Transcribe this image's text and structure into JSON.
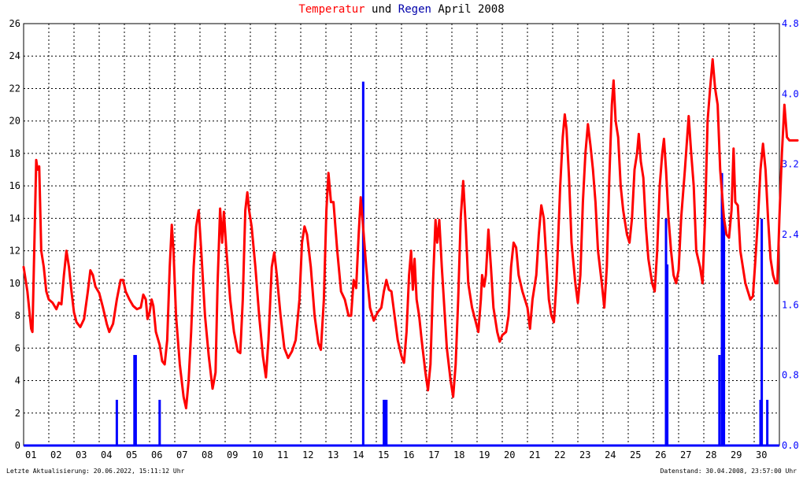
{
  "title": {
    "part1": "Temperatur",
    "part2": " und ",
    "part3": "Regen",
    "part4": " April 2008"
  },
  "footer": {
    "left": "Letzte Aktualisierung: 20.06.2022, 15:11:12 Uhr",
    "right": "Datenstand: 30.04.2008, 23:57:00 Uhr"
  },
  "colors": {
    "temperature": "#ff0000",
    "rain": "#0000ff",
    "grid": "#000000",
    "left_axis": "#000000",
    "right_axis": "#0000ff"
  },
  "chart_data": {
    "type": "line",
    "title": "Temperatur und Regen April 2008",
    "x_ticks": [
      "01",
      "02",
      "03",
      "04",
      "05",
      "06",
      "07",
      "08",
      "09",
      "10",
      "11",
      "12",
      "13",
      "14",
      "15",
      "16",
      "17",
      "18",
      "19",
      "20",
      "21",
      "22",
      "23",
      "24",
      "25",
      "26",
      "27",
      "28",
      "29",
      "30"
    ],
    "xlim": [
      0,
      30
    ],
    "y_left": {
      "ylim": [
        0,
        26
      ],
      "ticks": [
        "0",
        "2",
        "4",
        "6",
        "8",
        "10",
        "12",
        "14",
        "16",
        "18",
        "20",
        "22",
        "24",
        "26"
      ]
    },
    "y_right": {
      "ylim": [
        0,
        4.8
      ],
      "ticks": [
        "0.0",
        "0.8",
        "1.6",
        "2.4",
        "3.2",
        "4.0",
        "4.8"
      ]
    },
    "grid": true,
    "series": [
      {
        "name": "Temperatur",
        "axis": "left",
        "points": [
          [
            0.0,
            11.0
          ],
          [
            0.15,
            9.5
          ],
          [
            0.3,
            7.2
          ],
          [
            0.35,
            7.0
          ],
          [
            0.45,
            14.0
          ],
          [
            0.5,
            17.6
          ],
          [
            0.55,
            17.0
          ],
          [
            0.62,
            17.2
          ],
          [
            0.7,
            12.0
          ],
          [
            0.8,
            11.0
          ],
          [
            0.9,
            9.5
          ],
          [
            1.0,
            9.0
          ],
          [
            1.15,
            8.8
          ],
          [
            1.3,
            8.4
          ],
          [
            1.4,
            8.8
          ],
          [
            1.5,
            8.7
          ],
          [
            1.6,
            10.5
          ],
          [
            1.7,
            12.0
          ],
          [
            1.8,
            11.0
          ],
          [
            1.9,
            9.5
          ],
          [
            2.0,
            8.2
          ],
          [
            2.1,
            7.6
          ],
          [
            2.25,
            7.3
          ],
          [
            2.4,
            7.8
          ],
          [
            2.55,
            9.5
          ],
          [
            2.65,
            10.8
          ],
          [
            2.75,
            10.5
          ],
          [
            2.85,
            9.8
          ],
          [
            3.0,
            9.4
          ],
          [
            3.15,
            8.5
          ],
          [
            3.3,
            7.5
          ],
          [
            3.4,
            7.0
          ],
          [
            3.55,
            7.5
          ],
          [
            3.7,
            9.0
          ],
          [
            3.85,
            10.2
          ],
          [
            3.95,
            10.2
          ],
          [
            4.05,
            9.5
          ],
          [
            4.2,
            9.0
          ],
          [
            4.35,
            8.6
          ],
          [
            4.5,
            8.4
          ],
          [
            4.65,
            8.5
          ],
          [
            4.75,
            9.3
          ],
          [
            4.85,
            9.0
          ],
          [
            4.92,
            7.8
          ],
          [
            5.0,
            8.2
          ],
          [
            5.08,
            9.0
          ],
          [
            5.15,
            8.6
          ],
          [
            5.25,
            7.0
          ],
          [
            5.4,
            6.2
          ],
          [
            5.5,
            5.2
          ],
          [
            5.6,
            5.0
          ],
          [
            5.7,
            6.5
          ],
          [
            5.8,
            11.0
          ],
          [
            5.88,
            13.6
          ],
          [
            5.95,
            12.0
          ],
          [
            6.05,
            8.0
          ],
          [
            6.2,
            5.0
          ],
          [
            6.35,
            3.0
          ],
          [
            6.45,
            2.3
          ],
          [
            6.55,
            4.0
          ],
          [
            6.65,
            7.0
          ],
          [
            6.75,
            11.0
          ],
          [
            6.85,
            13.5
          ],
          [
            6.95,
            14.5
          ],
          [
            7.05,
            12.0
          ],
          [
            7.2,
            8.0
          ],
          [
            7.35,
            5.5
          ],
          [
            7.5,
            3.5
          ],
          [
            7.62,
            4.5
          ],
          [
            7.7,
            10.0
          ],
          [
            7.8,
            14.6
          ],
          [
            7.88,
            12.5
          ],
          [
            7.95,
            14.4
          ],
          [
            8.05,
            12.0
          ],
          [
            8.2,
            9.0
          ],
          [
            8.35,
            7.0
          ],
          [
            8.5,
            5.8
          ],
          [
            8.6,
            5.7
          ],
          [
            8.7,
            9.0
          ],
          [
            8.8,
            14.5
          ],
          [
            8.88,
            15.6
          ],
          [
            8.95,
            14.5
          ],
          [
            9.05,
            13.5
          ],
          [
            9.2,
            11.0
          ],
          [
            9.35,
            8.0
          ],
          [
            9.5,
            5.5
          ],
          [
            9.62,
            4.2
          ],
          [
            9.72,
            6.5
          ],
          [
            9.85,
            11.0
          ],
          [
            9.95,
            11.9
          ],
          [
            10.05,
            10.5
          ],
          [
            10.2,
            8.0
          ],
          [
            10.35,
            6.0
          ],
          [
            10.5,
            5.4
          ],
          [
            10.65,
            5.8
          ],
          [
            10.8,
            6.5
          ],
          [
            10.95,
            9.0
          ],
          [
            11.05,
            12.5
          ],
          [
            11.15,
            13.5
          ],
          [
            11.25,
            13.0
          ],
          [
            11.4,
            11.0
          ],
          [
            11.55,
            8.0
          ],
          [
            11.7,
            6.3
          ],
          [
            11.8,
            5.9
          ],
          [
            11.92,
            9.0
          ],
          [
            12.02,
            14.5
          ],
          [
            12.1,
            16.8
          ],
          [
            12.2,
            15.0
          ],
          [
            12.3,
            15.0
          ],
          [
            12.45,
            12.0
          ],
          [
            12.6,
            9.5
          ],
          [
            12.75,
            9.0
          ],
          [
            12.9,
            8.0
          ],
          [
            13.0,
            8.0
          ],
          [
            13.1,
            10.2
          ],
          [
            13.2,
            9.7
          ],
          [
            13.3,
            13.0
          ],
          [
            13.38,
            15.3
          ],
          [
            13.45,
            14.0
          ],
          [
            13.6,
            11.0
          ],
          [
            13.75,
            8.5
          ],
          [
            13.9,
            7.7
          ],
          [
            14.05,
            8.2
          ],
          [
            14.2,
            8.5
          ],
          [
            14.3,
            9.5
          ],
          [
            14.4,
            10.2
          ],
          [
            14.5,
            9.6
          ],
          [
            14.6,
            9.5
          ],
          [
            14.7,
            8.3
          ],
          [
            14.85,
            6.5
          ],
          [
            15.0,
            5.5
          ],
          [
            15.1,
            5.1
          ],
          [
            15.2,
            7.0
          ],
          [
            15.3,
            10.5
          ],
          [
            15.38,
            12.0
          ],
          [
            15.45,
            9.6
          ],
          [
            15.52,
            11.5
          ],
          [
            15.6,
            9.0
          ],
          [
            15.7,
            8.0
          ],
          [
            15.8,
            6.5
          ],
          [
            15.95,
            4.5
          ],
          [
            16.05,
            3.4
          ],
          [
            16.15,
            5.0
          ],
          [
            16.25,
            10.0
          ],
          [
            16.35,
            13.9
          ],
          [
            16.42,
            12.5
          ],
          [
            16.5,
            13.9
          ],
          [
            16.6,
            11.0
          ],
          [
            16.7,
            8.5
          ],
          [
            16.8,
            6.0
          ],
          [
            16.95,
            4.0
          ],
          [
            17.05,
            3.0
          ],
          [
            17.15,
            5.0
          ],
          [
            17.25,
            9.0
          ],
          [
            17.35,
            14.0
          ],
          [
            17.45,
            16.3
          ],
          [
            17.55,
            13.5
          ],
          [
            17.65,
            10.0
          ],
          [
            17.8,
            8.5
          ],
          [
            17.95,
            7.6
          ],
          [
            18.05,
            7.0
          ],
          [
            18.15,
            9.0
          ],
          [
            18.2,
            10.5
          ],
          [
            18.28,
            9.8
          ],
          [
            18.35,
            10.5
          ],
          [
            18.45,
            13.3
          ],
          [
            18.55,
            11.0
          ],
          [
            18.65,
            8.5
          ],
          [
            18.8,
            7.0
          ],
          [
            18.9,
            6.4
          ],
          [
            19.0,
            6.8
          ],
          [
            19.15,
            7.0
          ],
          [
            19.25,
            8.0
          ],
          [
            19.35,
            11.0
          ],
          [
            19.45,
            12.5
          ],
          [
            19.55,
            12.2
          ],
          [
            19.65,
            10.5
          ],
          [
            19.8,
            9.5
          ],
          [
            19.9,
            9.0
          ],
          [
            20.0,
            8.5
          ],
          [
            20.1,
            7.2
          ],
          [
            20.2,
            9.0
          ],
          [
            20.35,
            10.5
          ],
          [
            20.45,
            13.0
          ],
          [
            20.55,
            14.8
          ],
          [
            20.65,
            14.0
          ],
          [
            20.75,
            11.5
          ],
          [
            20.85,
            9.0
          ],
          [
            20.95,
            8.0
          ],
          [
            21.05,
            7.6
          ],
          [
            21.15,
            10.0
          ],
          [
            21.3,
            16.0
          ],
          [
            21.4,
            19.0
          ],
          [
            21.48,
            20.4
          ],
          [
            21.55,
            19.5
          ],
          [
            21.65,
            16.5
          ],
          [
            21.75,
            12.5
          ],
          [
            21.9,
            10.0
          ],
          [
            22.0,
            8.8
          ],
          [
            22.1,
            10.5
          ],
          [
            22.2,
            15.0
          ],
          [
            22.3,
            18.0
          ],
          [
            22.4,
            19.8
          ],
          [
            22.5,
            18.5
          ],
          [
            22.6,
            17.0
          ],
          [
            22.7,
            15.0
          ],
          [
            22.8,
            12.0
          ],
          [
            22.95,
            10.0
          ],
          [
            23.05,
            8.5
          ],
          [
            23.15,
            11.0
          ],
          [
            23.25,
            16.5
          ],
          [
            23.35,
            21.0
          ],
          [
            23.42,
            22.5
          ],
          [
            23.5,
            20.0
          ],
          [
            23.6,
            19.0
          ],
          [
            23.7,
            16.0
          ],
          [
            23.8,
            14.5
          ],
          [
            23.95,
            13.0
          ],
          [
            24.05,
            12.5
          ],
          [
            24.15,
            14.0
          ],
          [
            24.25,
            17.0
          ],
          [
            24.35,
            18.0
          ],
          [
            24.42,
            19.2
          ],
          [
            24.5,
            17.5
          ],
          [
            24.6,
            16.5
          ],
          [
            24.7,
            13.5
          ],
          [
            24.8,
            11.5
          ],
          [
            24.95,
            10.0
          ],
          [
            25.05,
            9.5
          ],
          [
            25.15,
            12.0
          ],
          [
            25.25,
            16.0
          ],
          [
            25.35,
            18.0
          ],
          [
            25.42,
            18.9
          ],
          [
            25.5,
            17.0
          ],
          [
            25.6,
            14.0
          ],
          [
            25.7,
            12.0
          ],
          [
            25.8,
            10.5
          ],
          [
            25.9,
            10.0
          ],
          [
            26.0,
            10.8
          ],
          [
            26.1,
            14.0
          ],
          [
            26.25,
            17.0
          ],
          [
            26.4,
            20.3
          ],
          [
            26.5,
            18.0
          ],
          [
            26.6,
            16.0
          ],
          [
            26.7,
            12.0
          ],
          [
            26.85,
            11.0
          ],
          [
            26.95,
            10.0
          ],
          [
            27.05,
            14.0
          ],
          [
            27.15,
            20.0
          ],
          [
            27.25,
            22.0
          ],
          [
            27.35,
            23.8
          ],
          [
            27.45,
            22.0
          ],
          [
            27.55,
            21.0
          ],
          [
            27.65,
            17.0
          ],
          [
            27.8,
            14.0
          ],
          [
            27.9,
            13.0
          ],
          [
            28.0,
            12.8
          ],
          [
            28.1,
            14.5
          ],
          [
            28.18,
            18.3
          ],
          [
            28.25,
            15.0
          ],
          [
            28.35,
            14.8
          ],
          [
            28.45,
            12.0
          ],
          [
            28.55,
            11.0
          ],
          [
            28.65,
            10.0
          ],
          [
            28.75,
            9.5
          ],
          [
            28.85,
            9.0
          ],
          [
            28.95,
            9.2
          ],
          [
            29.05,
            11.5
          ],
          [
            29.15,
            14.0
          ],
          [
            29.25,
            17.0
          ],
          [
            29.35,
            18.6
          ],
          [
            29.45,
            17.0
          ],
          [
            29.55,
            14.0
          ],
          [
            29.65,
            11.5
          ],
          [
            29.75,
            10.5
          ],
          [
            29.85,
            10.0
          ],
          [
            29.92,
            10.0
          ],
          [
            30.0,
            14.0
          ],
          [
            30.1,
            18.0
          ],
          [
            30.2,
            21.0
          ],
          [
            30.3,
            19.0
          ],
          [
            30.4,
            18.8
          ],
          [
            30.55,
            18.8
          ],
          [
            30.72,
            18.8
          ]
        ]
      },
      {
        "name": "Regen",
        "axis": "right",
        "type": "bar",
        "bars": [
          [
            3.7,
            0.52
          ],
          [
            4.4,
            1.03
          ],
          [
            4.45,
            1.03
          ],
          [
            5.4,
            0.52
          ],
          [
            13.48,
            4.14
          ],
          [
            14.3,
            0.52
          ],
          [
            14.35,
            0.52
          ],
          [
            14.4,
            0.52
          ],
          [
            25.5,
            2.58
          ],
          [
            25.55,
            2.06
          ],
          [
            27.62,
            1.03
          ],
          [
            27.72,
            3.1
          ],
          [
            27.8,
            2.58
          ],
          [
            29.25,
            0.52
          ],
          [
            29.3,
            2.58
          ],
          [
            29.52,
            0.52
          ]
        ]
      }
    ]
  }
}
